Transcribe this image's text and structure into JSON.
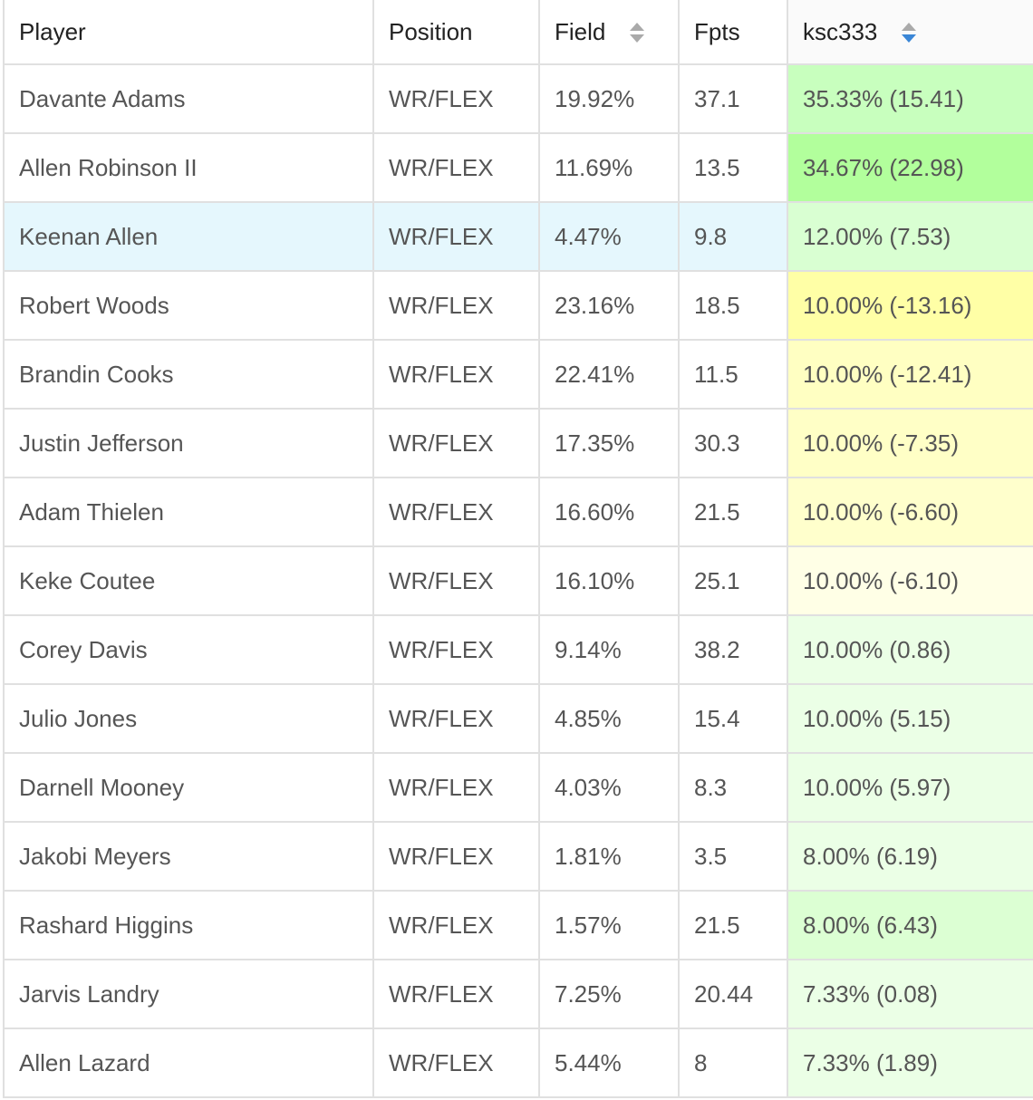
{
  "header": {
    "player": "Player",
    "position": "Position",
    "field": "Field",
    "fpts": "Fpts",
    "user": "ksc333"
  },
  "sort": {
    "column": "ksc333",
    "direction": "descending",
    "active_color": "#3a86d6"
  },
  "highlight_row_color": "#e5f7fd",
  "rows": [
    {
      "player": "Davante Adams",
      "position": "WR/FLEX",
      "field": "19.92%",
      "fpts": "37.1",
      "user": "35.33% (15.41)",
      "color": "#c8ffbe"
    },
    {
      "player": "Allen Robinson II",
      "position": "WR/FLEX",
      "field": "11.69%",
      "fpts": "13.5",
      "user": "34.67% (22.98)",
      "color": "#b2ff9c"
    },
    {
      "player": "Keenan Allen",
      "position": "WR/FLEX",
      "field": "4.47%",
      "fpts": "9.8",
      "user": "12.00% (7.53)",
      "color": "#d9ffd2",
      "highlighted": true
    },
    {
      "player": "Robert Woods",
      "position": "WR/FLEX",
      "field": "23.16%",
      "fpts": "18.5",
      "user": "10.00% (-13.16)",
      "color": "#ffffa6"
    },
    {
      "player": "Brandin Cooks",
      "position": "WR/FLEX",
      "field": "22.41%",
      "fpts": "11.5",
      "user": "10.00% (-12.41)",
      "color": "#ffffc2"
    },
    {
      "player": "Justin Jefferson",
      "position": "WR/FLEX",
      "field": "17.35%",
      "fpts": "30.3",
      "user": "10.00% (-7.35)",
      "color": "#ffffc6"
    },
    {
      "player": "Adam Thielen",
      "position": "WR/FLEX",
      "field": "16.60%",
      "fpts": "21.5",
      "user": "10.00% (-6.60)",
      "color": "#ffffcc"
    },
    {
      "player": "Keke Coutee",
      "position": "WR/FLEX",
      "field": "16.10%",
      "fpts": "25.1",
      "user": "10.00% (-6.10)",
      "color": "#ffffe6"
    },
    {
      "player": "Corey Davis",
      "position": "WR/FLEX",
      "field": "9.14%",
      "fpts": "38.2",
      "user": "10.00% (0.86)",
      "color": "#ebffe6"
    },
    {
      "player": "Julio Jones",
      "position": "WR/FLEX",
      "field": "4.85%",
      "fpts": "15.4",
      "user": "10.00% (5.15)",
      "color": "#ebffe6"
    },
    {
      "player": "Darnell Mooney",
      "position": "WR/FLEX",
      "field": "4.03%",
      "fpts": "8.3",
      "user": "10.00% (5.97)",
      "color": "#ebffe6"
    },
    {
      "player": "Jakobi Meyers",
      "position": "WR/FLEX",
      "field": "1.81%",
      "fpts": "3.5",
      "user": "8.00% (6.19)",
      "color": "#ebffe6"
    },
    {
      "player": "Rashard Higgins",
      "position": "WR/FLEX",
      "field": "1.57%",
      "fpts": "21.5",
      "user": "8.00% (6.43)",
      "color": "#dcffd3"
    },
    {
      "player": "Jarvis Landry",
      "position": "WR/FLEX",
      "field": "7.25%",
      "fpts": "20.44",
      "user": "7.33% (0.08)",
      "color": "#ebffe6"
    },
    {
      "player": "Allen Lazard",
      "position": "WR/FLEX",
      "field": "5.44%",
      "fpts": "8",
      "user": "7.33% (1.89)",
      "color": "#ebffe6"
    }
  ]
}
